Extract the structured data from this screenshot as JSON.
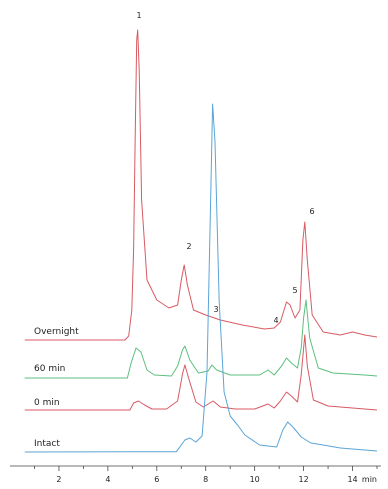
{
  "chart_data": {
    "type": "line",
    "x_unit": "min",
    "xlim": [
      0,
      15
    ],
    "x_ticks": [
      2,
      4,
      6,
      8,
      10,
      12,
      14
    ],
    "grid": false,
    "legend": "none",
    "series": [
      {
        "name": "Intact",
        "color": "#5ba4d6",
        "points": [
          [
            0.6,
            0
          ],
          [
            6.8,
            0.3
          ],
          [
            7.15,
            12
          ],
          [
            7.35,
            14
          ],
          [
            7.6,
            10
          ],
          [
            7.85,
            16
          ],
          [
            8.05,
            80
          ],
          [
            8.2,
            250
          ],
          [
            8.28,
            348
          ],
          [
            8.38,
            310
          ],
          [
            8.55,
            150
          ],
          [
            8.75,
            60
          ],
          [
            9.0,
            36
          ],
          [
            9.3,
            27
          ],
          [
            9.6,
            17
          ],
          [
            10.2,
            7
          ],
          [
            10.9,
            5
          ],
          [
            11.15,
            22
          ],
          [
            11.35,
            30
          ],
          [
            11.6,
            24
          ],
          [
            11.9,
            15
          ],
          [
            12.3,
            9
          ],
          [
            12.8,
            7
          ],
          [
            13.5,
            4
          ],
          [
            15.0,
            1
          ]
        ]
      },
      {
        "name": "0 min",
        "color": "#d85a63",
        "points": [
          [
            0.6,
            0
          ],
          [
            4.9,
            0
          ],
          [
            5.05,
            7
          ],
          [
            5.25,
            9
          ],
          [
            5.5,
            5
          ],
          [
            5.8,
            1
          ],
          [
            6.4,
            1
          ],
          [
            6.85,
            9
          ],
          [
            7.05,
            36
          ],
          [
            7.15,
            45
          ],
          [
            7.3,
            32
          ],
          [
            7.6,
            8
          ],
          [
            7.9,
            3
          ],
          [
            8.3,
            9
          ],
          [
            8.6,
            3
          ],
          [
            9.2,
            1
          ],
          [
            10.0,
            1
          ],
          [
            10.55,
            6
          ],
          [
            10.8,
            2
          ],
          [
            11.05,
            9
          ],
          [
            11.3,
            18
          ],
          [
            11.5,
            14
          ],
          [
            11.75,
            8
          ],
          [
            11.9,
            35
          ],
          [
            12.05,
            75
          ],
          [
            12.15,
            44
          ],
          [
            12.4,
            10
          ],
          [
            13.0,
            4
          ],
          [
            14.5,
            1
          ],
          [
            15.0,
            0
          ]
        ]
      },
      {
        "name": "60 min",
        "color": "#5cbf7d",
        "points": [
          [
            0.6,
            0
          ],
          [
            4.8,
            0
          ],
          [
            4.95,
            15
          ],
          [
            5.15,
            30
          ],
          [
            5.35,
            26
          ],
          [
            5.6,
            8
          ],
          [
            5.9,
            3
          ],
          [
            6.6,
            2
          ],
          [
            6.85,
            12
          ],
          [
            7.05,
            28
          ],
          [
            7.15,
            32
          ],
          [
            7.35,
            18
          ],
          [
            7.7,
            5
          ],
          [
            8.1,
            7
          ],
          [
            8.25,
            13
          ],
          [
            8.45,
            8
          ],
          [
            9.0,
            3
          ],
          [
            10.2,
            3
          ],
          [
            10.55,
            8
          ],
          [
            10.8,
            3
          ],
          [
            11.1,
            12
          ],
          [
            11.3,
            20
          ],
          [
            11.5,
            15
          ],
          [
            11.75,
            10
          ],
          [
            11.9,
            30
          ],
          [
            12.0,
            60
          ],
          [
            12.1,
            78
          ],
          [
            12.25,
            40
          ],
          [
            12.6,
            10
          ],
          [
            13.2,
            5
          ],
          [
            14.5,
            3
          ],
          [
            15.0,
            2
          ]
        ]
      },
      {
        "name": "Overnight",
        "color": "#d85a63",
        "points": [
          [
            0.6,
            0
          ],
          [
            4.7,
            0
          ],
          [
            4.85,
            4
          ],
          [
            4.98,
            30
          ],
          [
            5.05,
            90
          ],
          [
            5.12,
            210
          ],
          [
            5.18,
            300
          ],
          [
            5.22,
            310
          ],
          [
            5.28,
            270
          ],
          [
            5.38,
            140
          ],
          [
            5.6,
            60
          ],
          [
            6.0,
            40
          ],
          [
            6.5,
            32
          ],
          [
            6.85,
            35
          ],
          [
            7.0,
            60
          ],
          [
            7.12,
            75
          ],
          [
            7.25,
            55
          ],
          [
            7.5,
            30
          ],
          [
            8.0,
            25
          ],
          [
            8.6,
            20
          ],
          [
            9.5,
            15
          ],
          [
            10.4,
            11
          ],
          [
            10.8,
            12
          ],
          [
            11.05,
            18
          ],
          [
            11.3,
            38
          ],
          [
            11.45,
            35
          ],
          [
            11.65,
            22
          ],
          [
            11.85,
            30
          ],
          [
            11.97,
            100
          ],
          [
            12.05,
            118
          ],
          [
            12.15,
            80
          ],
          [
            12.35,
            25
          ],
          [
            12.8,
            8
          ],
          [
            13.5,
            5
          ],
          [
            14.0,
            8
          ],
          [
            14.5,
            5
          ],
          [
            15.0,
            3
          ]
        ]
      }
    ],
    "trace_labels": [
      "Overnight",
      "60 min",
      "0 min",
      "Intact"
    ],
    "peak_labels": [
      {
        "label": "1",
        "x": 5.2
      },
      {
        "label": "2",
        "x": 7.1
      },
      {
        "label": "3",
        "x": 8.3
      },
      {
        "label": "4",
        "x": 10.6
      },
      {
        "label": "5",
        "x": 11.4
      },
      {
        "label": "6",
        "x": 12.05
      }
    ]
  }
}
